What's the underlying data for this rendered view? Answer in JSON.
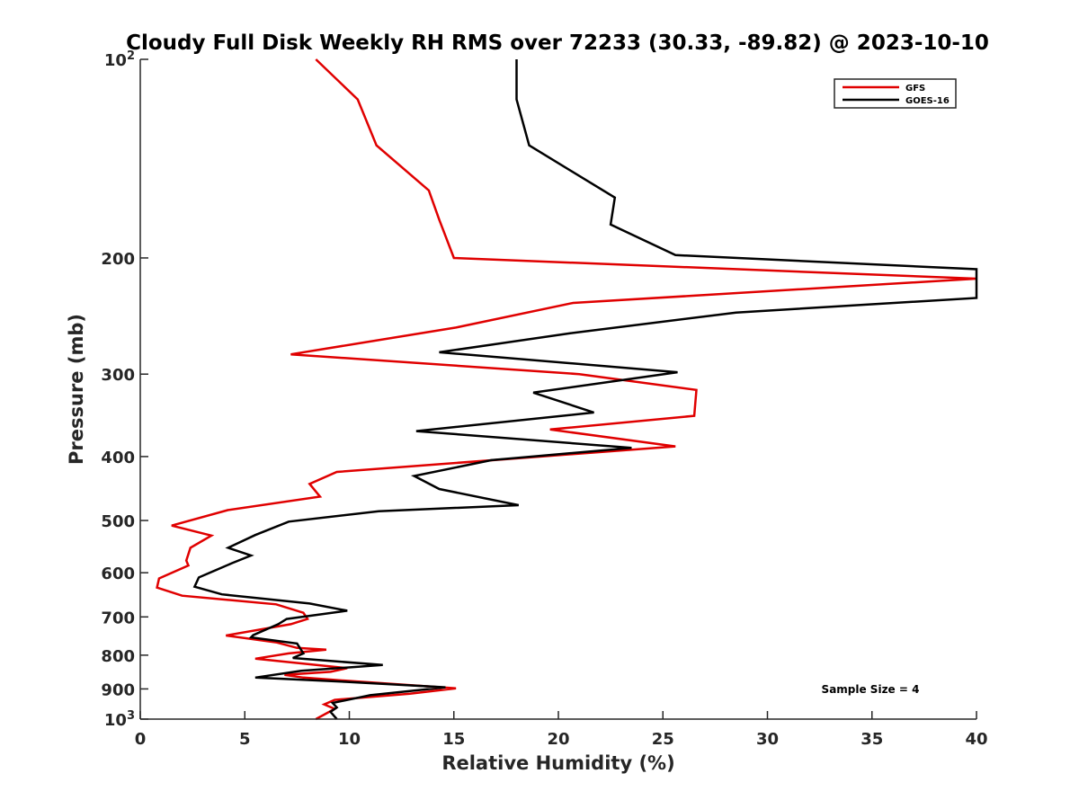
{
  "chart_data": {
    "type": "line",
    "title": "Cloudy Full Disk Weekly RH RMS over 72233 (30.33, -89.82) @ 2023-10-10",
    "xlabel": "Relative Humidity (%)",
    "ylabel": "Pressure (mb)",
    "xlim": [
      0,
      40
    ],
    "ylim": [
      100,
      1000
    ],
    "yscale": "log",
    "y_reversed": true,
    "x_ticks": [
      0,
      5,
      10,
      15,
      20,
      25,
      30,
      35,
      40
    ],
    "y_ticks": [
      {
        "value": 100,
        "label": "10",
        "sup": "2"
      },
      {
        "value": 200,
        "label": "200",
        "sup": ""
      },
      {
        "value": 300,
        "label": "300",
        "sup": ""
      },
      {
        "value": 400,
        "label": "400",
        "sup": ""
      },
      {
        "value": 500,
        "label": "500",
        "sup": ""
      },
      {
        "value": 600,
        "label": "600",
        "sup": ""
      },
      {
        "value": 700,
        "label": "700",
        "sup": ""
      },
      {
        "value": 800,
        "label": "800",
        "sup": ""
      },
      {
        "value": 900,
        "label": "900",
        "sup": ""
      },
      {
        "value": 1000,
        "label": "10",
        "sup": "3"
      }
    ],
    "legend_position": "top-right",
    "annotation": "Sample Size = 4",
    "series": [
      {
        "name": "GFS",
        "color": "#e00000",
        "points": [
          [
            8.4,
            100
          ],
          [
            10.4,
            115
          ],
          [
            11.3,
            135
          ],
          [
            13.8,
            158
          ],
          [
            14.3,
            175
          ],
          [
            15.0,
            200
          ],
          [
            40.0,
            215
          ],
          [
            40.0,
            215
          ],
          [
            20.7,
            234
          ],
          [
            15.1,
            255
          ],
          [
            7.2,
            280
          ],
          [
            21.0,
            300
          ],
          [
            26.6,
            317
          ],
          [
            26.5,
            347
          ],
          [
            19.6,
            364
          ],
          [
            25.6,
            386
          ],
          [
            9.4,
            422
          ],
          [
            8.1,
            440
          ],
          [
            8.6,
            460
          ],
          [
            4.2,
            482
          ],
          [
            1.5,
            509
          ],
          [
            3.4,
            527
          ],
          [
            2.4,
            550
          ],
          [
            2.2,
            575
          ],
          [
            2.3,
            585
          ],
          [
            0.9,
            612
          ],
          [
            0.8,
            632
          ],
          [
            2.0,
            650
          ],
          [
            6.5,
            670
          ],
          [
            7.8,
            690
          ],
          [
            8.0,
            705
          ],
          [
            7.2,
            718
          ],
          [
            4.1,
            747
          ],
          [
            6.5,
            765
          ],
          [
            7.5,
            780
          ],
          [
            8.9,
            785
          ],
          [
            7.1,
            795
          ],
          [
            5.5,
            810
          ],
          [
            9.9,
            837
          ],
          [
            9.1,
            848
          ],
          [
            6.9,
            857
          ],
          [
            7.8,
            865
          ],
          [
            9.9,
            875
          ],
          [
            15.1,
            898
          ],
          [
            12.9,
            915
          ],
          [
            9.3,
            935
          ],
          [
            8.8,
            950
          ],
          [
            9.3,
            965
          ],
          [
            8.4,
            1000
          ]
        ]
      },
      {
        "name": "GOES-16",
        "color": "#000000",
        "points": [
          [
            18.0,
            100
          ],
          [
            18.0,
            115
          ],
          [
            18.6,
            135
          ],
          [
            22.7,
            162
          ],
          [
            22.5,
            178
          ],
          [
            25.6,
            198
          ],
          [
            40.0,
            208
          ],
          [
            40.0,
            221
          ],
          [
            40.0,
            230
          ],
          [
            28.5,
            242
          ],
          [
            20.6,
            260
          ],
          [
            14.3,
            278
          ],
          [
            25.7,
            298
          ],
          [
            18.8,
            320
          ],
          [
            21.7,
            343
          ],
          [
            13.2,
            366
          ],
          [
            23.5,
            388
          ],
          [
            16.8,
            405
          ],
          [
            13.1,
            428
          ],
          [
            14.3,
            448
          ],
          [
            18.1,
            474
          ],
          [
            11.4,
            484
          ],
          [
            7.1,
            502
          ],
          [
            5.5,
            526
          ],
          [
            4.2,
            550
          ],
          [
            5.3,
            565
          ],
          [
            4.4,
            580
          ],
          [
            2.8,
            610
          ],
          [
            2.6,
            630
          ],
          [
            3.9,
            647
          ],
          [
            8.1,
            668
          ],
          [
            9.9,
            685
          ],
          [
            7.0,
            705
          ],
          [
            6.6,
            718
          ],
          [
            5.4,
            746
          ],
          [
            5.3,
            752
          ],
          [
            7.5,
            768
          ],
          [
            7.8,
            795
          ],
          [
            7.3,
            808
          ],
          [
            11.6,
            828
          ],
          [
            7.7,
            845
          ],
          [
            5.5,
            865
          ],
          [
            9.8,
            878
          ],
          [
            14.6,
            895
          ],
          [
            11.0,
            920
          ],
          [
            9.2,
            945
          ],
          [
            9.4,
            960
          ],
          [
            9.1,
            975
          ],
          [
            9.4,
            1000
          ]
        ]
      }
    ]
  }
}
